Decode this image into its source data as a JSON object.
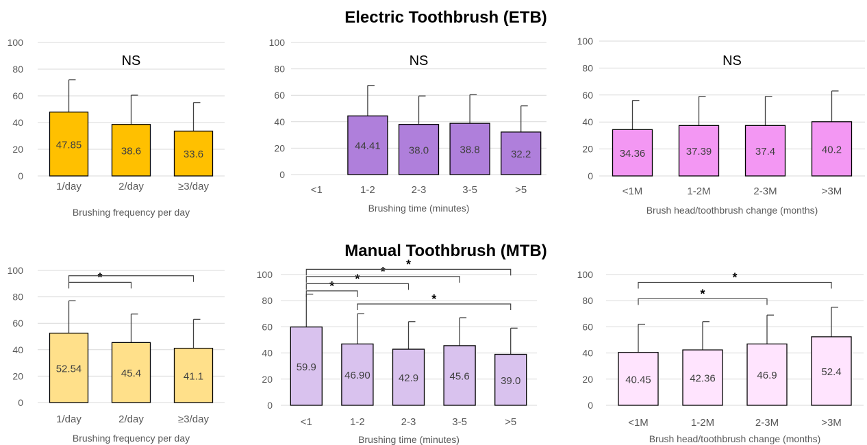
{
  "sections": {
    "etb_title": "Electric Toothbrush (ETB)",
    "mtb_title": "Manual Toothbrush (MTB)"
  },
  "chart_data": [
    {
      "id": "etb-frequency",
      "type": "bar",
      "group": "ETB",
      "annotation": "NS",
      "categories": [
        "1/day",
        "2/day",
        "≥3/day"
      ],
      "values": [
        47.85,
        38.6,
        33.6
      ],
      "value_labels": [
        "47.85",
        "38.6",
        "33.6"
      ],
      "error_upper": [
        72,
        60.5,
        55
      ],
      "xlabel": "Brushing frequency per day",
      "ylim": [
        0,
        100
      ],
      "yticks": [
        0,
        20,
        40,
        60,
        80,
        100
      ],
      "grid": true,
      "bar_color": "#FFC000",
      "significance": []
    },
    {
      "id": "etb-time",
      "type": "bar",
      "group": "ETB",
      "annotation": "NS",
      "categories": [
        "<1",
        "1-2",
        "2-3",
        "3-5",
        ">5"
      ],
      "values": [
        null,
        44.41,
        38.0,
        38.8,
        32.2
      ],
      "value_labels": [
        "",
        "44.41",
        "38.0",
        "38.8",
        "32.2"
      ],
      "error_upper": [
        null,
        67.5,
        59.5,
        60.5,
        52
      ],
      "xlabel": "Brushing time (minutes)",
      "ylim": [
        0,
        100
      ],
      "yticks": [
        0,
        20,
        40,
        60,
        80,
        100
      ],
      "grid": true,
      "bar_color": "#AF7FDB",
      "significance": []
    },
    {
      "id": "etb-change",
      "type": "bar",
      "group": "ETB",
      "annotation": "NS",
      "categories": [
        "<1M",
        "1-2M",
        "2-3M",
        ">3M"
      ],
      "values": [
        34.36,
        37.39,
        37.4,
        40.2
      ],
      "value_labels": [
        "34.36",
        "37.39",
        "37.4",
        "40.2"
      ],
      "error_upper": [
        56,
        59,
        59,
        63
      ],
      "xlabel": "Brush head/toothbrush change (months)",
      "ylim": [
        0,
        100
      ],
      "yticks": [
        0,
        20,
        40,
        60,
        80,
        100
      ],
      "grid": true,
      "bar_color": "#F397F3",
      "significance": []
    },
    {
      "id": "mtb-frequency",
      "type": "bar",
      "group": "MTB",
      "annotation": "",
      "categories": [
        "1/day",
        "2/day",
        "≥3/day"
      ],
      "values": [
        52.54,
        45.4,
        41.1
      ],
      "value_labels": [
        "52.54",
        "45.4",
        "41.1"
      ],
      "error_upper": [
        77,
        67,
        63
      ],
      "xlabel": "Brushing frequency per day",
      "ylim": [
        0,
        100
      ],
      "yticks": [
        0,
        20,
        40,
        60,
        80,
        100
      ],
      "grid": true,
      "bar_color": "#FFE08A",
      "significance": [
        {
          "from": 0,
          "to": 1,
          "level": 91,
          "label": "*"
        },
        {
          "from": 0,
          "to": 2,
          "level": 96,
          "label": ""
        }
      ]
    },
    {
      "id": "mtb-time",
      "type": "bar",
      "group": "MTB",
      "annotation": "",
      "categories": [
        "<1",
        "1-2",
        "2-3",
        "3-5",
        ">5"
      ],
      "values": [
        59.9,
        46.9,
        42.9,
        45.6,
        39.0
      ],
      "value_labels": [
        "59.9",
        "46.90",
        "42.9",
        "45.6",
        "39.0"
      ],
      "error_upper": [
        85,
        70,
        64,
        67,
        59
      ],
      "xlabel": "Brushing time (minutes)",
      "ylim": [
        0,
        100
      ],
      "yticks": [
        0,
        20,
        40,
        60,
        80,
        100
      ],
      "grid": true,
      "bar_color": "#D9C2EE",
      "significance": [
        {
          "from": 1,
          "to": 4,
          "level": 77.5,
          "label": "*"
        },
        {
          "from": 0,
          "to": 1,
          "level": 87.5,
          "label": "*"
        },
        {
          "from": 0,
          "to": 2,
          "level": 93,
          "label": "*"
        },
        {
          "from": 0,
          "to": 3,
          "level": 98.5,
          "label": "*"
        },
        {
          "from": 0,
          "to": 4,
          "level": 104,
          "label": "*"
        }
      ]
    },
    {
      "id": "mtb-change",
      "type": "bar",
      "group": "MTB",
      "annotation": "",
      "categories": [
        "<1M",
        "1-2M",
        "2-3M",
        ">3M"
      ],
      "values": [
        40.45,
        42.36,
        46.9,
        52.4
      ],
      "value_labels": [
        "40.45",
        "42.36",
        "46.9",
        "52.4"
      ],
      "error_upper": [
        62,
        64,
        69,
        75
      ],
      "xlabel": "Brush head/toothbrush change (months)",
      "ylim": [
        0,
        100
      ],
      "yticks": [
        0,
        20,
        40,
        60,
        80,
        100
      ],
      "grid": true,
      "bar_color": "#FFE4FE",
      "significance": [
        {
          "from": 0,
          "to": 2,
          "level": 81.5,
          "label": "*"
        },
        {
          "from": 0,
          "to": 3,
          "level": 94,
          "label": "*"
        }
      ]
    }
  ]
}
